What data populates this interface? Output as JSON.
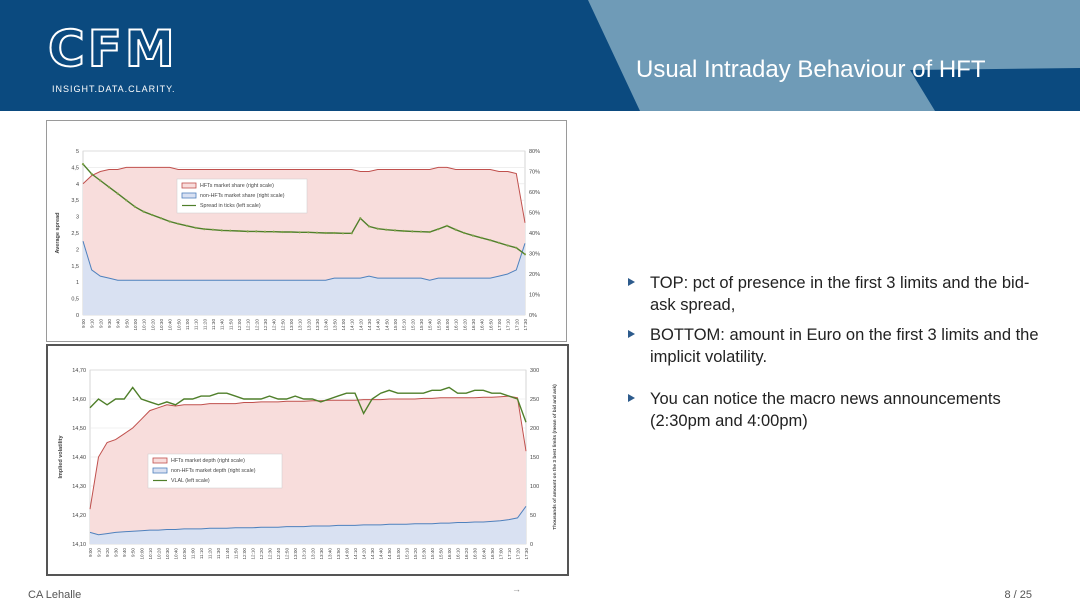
{
  "header": {
    "title": "Usual Intraday Behaviour of HFT",
    "logo_text": "CFM",
    "logo_tagline": "INSIGHT.DATA.CLARITY."
  },
  "bullets": [
    {
      "text": "TOP: pct of presence in the first 3 limits and the bid-ask spread,"
    },
    {
      "text": "BOTTOM: amount in Euro on the first 3 limits and the implicit volatility."
    },
    {
      "text": "You can notice the macro news announcements (2:30pm and 4:00pm)"
    }
  ],
  "footer": {
    "author": "CA Lehalle",
    "page": "8 / 25",
    "mid": "→"
  },
  "colors": {
    "header_bg": "#0b4a7f",
    "header_band": "#6f9bb7",
    "hft_line": "#c0504d",
    "hft_fill": "#f8dddc",
    "nonhft_line": "#4f81bd",
    "nonhft_fill": "#d9e1f2",
    "spread_line": "#4f7f2a",
    "spread_marker": "#7fa24a"
  },
  "chart_data": [
    {
      "type": "line",
      "ylabel": "Average spread",
      "ylim": [
        0,
        5
      ],
      "yticks": [
        "0",
        "0,5",
        "1",
        "1,5",
        "2",
        "2,5",
        "3",
        "3,5",
        "4",
        "4,5",
        "5"
      ],
      "y2lim": [
        0,
        80
      ],
      "y2ticks": [
        "0%",
        "10%",
        "20%",
        "30%",
        "40%",
        "50%",
        "60%",
        "70%",
        "80%"
      ],
      "x": [
        "9:00",
        "9:10",
        "9:20",
        "9:30",
        "9:40",
        "9:50",
        "10:00",
        "10:10",
        "10:20",
        "10:30",
        "10:40",
        "10:50",
        "11:00",
        "11:10",
        "11:20",
        "11:30",
        "11:40",
        "11:50",
        "12:00",
        "12:10",
        "12:20",
        "12:30",
        "12:40",
        "12:50",
        "13:00",
        "13:10",
        "13:20",
        "13:30",
        "13:40",
        "13:50",
        "14:00",
        "14:10",
        "14:20",
        "14:30",
        "14:40",
        "14:50",
        "15:00",
        "15:10",
        "15:20",
        "15:30",
        "15:40",
        "15:50",
        "16:00",
        "16:10",
        "16:20",
        "16:30",
        "16:40",
        "16:50",
        "17:00",
        "17:10",
        "17:20",
        "17:30"
      ],
      "legend": [
        "HFTs market share (right scale)",
        "non-HFTs market share (right scale)",
        "Spread in ticks (left scale)"
      ],
      "legend_position": "top-center",
      "series": [
        {
          "name": "HFTs market share (right scale)",
          "axis": "right",
          "values": [
            64,
            68,
            70,
            71,
            71,
            72,
            72,
            72,
            72,
            72,
            72,
            71,
            71,
            71,
            71,
            71,
            71,
            71,
            71,
            71,
            71,
            71,
            71,
            71,
            71,
            71,
            71,
            71,
            71,
            71,
            71,
            71,
            70,
            70,
            71,
            71,
            71,
            71,
            71,
            71,
            71,
            72,
            72,
            71,
            71,
            71,
            71,
            71,
            70,
            70,
            69,
            45
          ]
        },
        {
          "name": "non-HFTs market share (right scale)",
          "axis": "right",
          "values": [
            36,
            22,
            19,
            18,
            17,
            17,
            17,
            17,
            17,
            17,
            17,
            17,
            17,
            17,
            17,
            17,
            17,
            17,
            17,
            17,
            17,
            17,
            17,
            17,
            17,
            17,
            17,
            17,
            17,
            18,
            18,
            18,
            18,
            19,
            18,
            18,
            18,
            18,
            18,
            18,
            17,
            18,
            18,
            18,
            18,
            18,
            18,
            18,
            19,
            20,
            22,
            35
          ]
        },
        {
          "name": "Spread in ticks (left scale)",
          "axis": "left",
          "values": [
            4.6,
            4.3,
            4.1,
            3.9,
            3.7,
            3.5,
            3.3,
            3.15,
            3.05,
            2.95,
            2.85,
            2.78,
            2.72,
            2.66,
            2.62,
            2.6,
            2.58,
            2.57,
            2.56,
            2.55,
            2.55,
            2.54,
            2.54,
            2.53,
            2.53,
            2.52,
            2.52,
            2.51,
            2.5,
            2.5,
            2.49,
            2.49,
            2.95,
            2.7,
            2.63,
            2.6,
            2.58,
            2.56,
            2.55,
            2.54,
            2.53,
            2.62,
            2.72,
            2.6,
            2.5,
            2.42,
            2.35,
            2.28,
            2.2,
            2.12,
            2.05,
            1.85
          ]
        }
      ]
    },
    {
      "type": "line",
      "ylabel": "Implied volatility",
      "ylim": [
        14.1,
        14.7
      ],
      "yticks": [
        "14,10",
        "14,20",
        "14,30",
        "14,40",
        "14,50",
        "14,60",
        "14,70"
      ],
      "y2label": "Thousands of amount on the 3 best limits (mean of bid and ask)",
      "y2lim": [
        0,
        300
      ],
      "y2ticks": [
        "0",
        "50",
        "100",
        "150",
        "200",
        "250",
        "300"
      ],
      "x": [
        "9:00",
        "9:10",
        "9:20",
        "9:30",
        "9:40",
        "9:50",
        "10:00",
        "10:10",
        "10:20",
        "10:30",
        "10:40",
        "10:50",
        "11:00",
        "11:10",
        "11:20",
        "11:30",
        "11:40",
        "11:50",
        "12:00",
        "12:10",
        "12:20",
        "12:30",
        "12:40",
        "12:50",
        "13:00",
        "13:10",
        "13:20",
        "13:30",
        "13:40",
        "13:50",
        "14:00",
        "14:10",
        "14:20",
        "14:30",
        "14:40",
        "14:50",
        "15:00",
        "15:10",
        "15:20",
        "15:30",
        "15:40",
        "15:50",
        "16:00",
        "16:10",
        "16:20",
        "16:30",
        "16:40",
        "16:50",
        "17:00",
        "17:10",
        "17:20",
        "17:30"
      ],
      "legend": [
        "HFTs market depth (right scale)",
        "non-HFTs market depth (right scale)",
        "VLAL (left scale)"
      ],
      "legend_position": "bottom-center",
      "series": [
        {
          "name": "HFTs market depth (right scale)",
          "axis": "right",
          "values": [
            60,
            150,
            175,
            180,
            190,
            200,
            215,
            230,
            235,
            240,
            238,
            240,
            240,
            240,
            242,
            242,
            242,
            242,
            244,
            244,
            245,
            245,
            245,
            246,
            246,
            246,
            247,
            247,
            248,
            248,
            248,
            248,
            249,
            249,
            249,
            250,
            250,
            250,
            250,
            251,
            251,
            252,
            252,
            252,
            252,
            252,
            253,
            253,
            254,
            255,
            252,
            160
          ]
        },
        {
          "name": "non-HFTs market depth (right scale)",
          "axis": "right",
          "values": [
            20,
            16,
            18,
            20,
            21,
            22,
            23,
            24,
            24,
            25,
            25,
            26,
            26,
            26,
            27,
            27,
            27,
            28,
            28,
            28,
            29,
            29,
            29,
            30,
            30,
            30,
            31,
            31,
            31,
            32,
            32,
            32,
            33,
            33,
            33,
            34,
            34,
            34,
            35,
            35,
            35,
            36,
            36,
            37,
            37,
            38,
            38,
            39,
            40,
            42,
            45,
            65
          ]
        },
        {
          "name": "VLAL (left scale)",
          "axis": "left",
          "values": [
            14.57,
            14.6,
            14.58,
            14.6,
            14.6,
            14.64,
            14.6,
            14.59,
            14.58,
            14.59,
            14.58,
            14.6,
            14.6,
            14.61,
            14.61,
            14.62,
            14.62,
            14.61,
            14.6,
            14.6,
            14.6,
            14.61,
            14.6,
            14.6,
            14.61,
            14.6,
            14.6,
            14.59,
            14.6,
            14.61,
            14.62,
            14.62,
            14.55,
            14.6,
            14.62,
            14.63,
            14.62,
            14.62,
            14.62,
            14.62,
            14.63,
            14.63,
            14.64,
            14.62,
            14.62,
            14.63,
            14.63,
            14.62,
            14.62,
            14.61,
            14.6,
            14.52
          ]
        }
      ]
    }
  ]
}
